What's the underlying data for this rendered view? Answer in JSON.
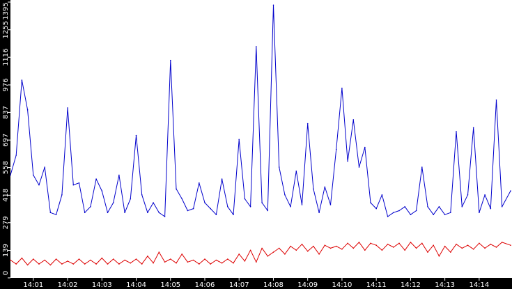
{
  "chart_data": {
    "type": "line",
    "title": "",
    "xlabel": "",
    "ylabel": "",
    "ylim": [
      0,
      1395
    ],
    "xlim": [
      "14:00:20",
      "14:14:55"
    ],
    "y_ticks": [
      0,
      139,
      279,
      418,
      558,
      697,
      837,
      976,
      1116,
      1255,
      1395
    ],
    "x_ticks": [
      "14:01",
      "14:02",
      "14:03",
      "14:04",
      "14:05",
      "14:06",
      "14:07",
      "14:08",
      "14:09",
      "14:10",
      "14:11",
      "14:12",
      "14:13",
      "14:14"
    ],
    "grid": false,
    "legend": "none",
    "colors": {
      "background": "#ffffff",
      "axis_band": "#000000",
      "tick_text": "#ffffff",
      "series_1": "#0000cc",
      "series_2": "#dd0000"
    },
    "series": [
      {
        "color": "#0000cc",
        "x": [
          "14:00:20",
          "14:00:30",
          "14:00:40",
          "14:00:50",
          "14:01:00",
          "14:01:10",
          "14:01:20",
          "14:01:30",
          "14:01:40",
          "14:01:50",
          "14:02:00",
          "14:02:10",
          "14:02:20",
          "14:02:30",
          "14:02:40",
          "14:02:50",
          "14:03:00",
          "14:03:10",
          "14:03:20",
          "14:03:30",
          "14:03:40",
          "14:03:50",
          "14:04:00",
          "14:04:10",
          "14:04:20",
          "14:04:30",
          "14:04:40",
          "14:04:50",
          "14:05:00",
          "14:05:10",
          "14:05:20",
          "14:05:30",
          "14:05:40",
          "14:05:50",
          "14:06:00",
          "14:06:10",
          "14:06:20",
          "14:06:30",
          "14:06:40",
          "14:06:50",
          "14:07:00",
          "14:07:10",
          "14:07:20",
          "14:07:30",
          "14:07:40",
          "14:07:50",
          "14:08:00",
          "14:08:10",
          "14:08:20",
          "14:08:30",
          "14:08:40",
          "14:08:50",
          "14:09:00",
          "14:09:10",
          "14:09:20",
          "14:09:30",
          "14:09:40",
          "14:09:50",
          "14:10:00",
          "14:10:10",
          "14:10:20",
          "14:10:30",
          "14:10:40",
          "14:10:50",
          "14:11:00",
          "14:11:10",
          "14:11:20",
          "14:11:30",
          "14:11:40",
          "14:11:50",
          "14:12:00",
          "14:12:10",
          "14:12:20",
          "14:12:30",
          "14:12:40",
          "14:12:50",
          "14:13:00",
          "14:13:10",
          "14:13:20",
          "14:13:30",
          "14:13:40",
          "14:13:50",
          "14:14:00",
          "14:14:10",
          "14:14:20",
          "14:14:30",
          "14:14:40",
          "14:14:55"
        ],
        "values": [
          520,
          620,
          1000,
          850,
          520,
          470,
          560,
          330,
          320,
          420,
          860,
          470,
          480,
          330,
          360,
          500,
          440,
          330,
          380,
          520,
          330,
          400,
          720,
          420,
          330,
          380,
          330,
          310,
          1100,
          450,
          400,
          340,
          350,
          480,
          380,
          350,
          320,
          500,
          360,
          320,
          700,
          400,
          360,
          1170,
          380,
          340,
          1380,
          560,
          420,
          360,
          540,
          370,
          780,
          450,
          330,
          460,
          370,
          650,
          960,
          590,
          800,
          560,
          660,
          380,
          350,
          420,
          310,
          330,
          340,
          360,
          320,
          340,
          560,
          360,
          320,
          360,
          320,
          330,
          740,
          360,
          420,
          760,
          330,
          420,
          350,
          900,
          360,
          440
        ]
      },
      {
        "color": "#dd0000",
        "x": [
          "14:00:20",
          "14:00:30",
          "14:00:40",
          "14:00:50",
          "14:01:00",
          "14:01:10",
          "14:01:20",
          "14:01:30",
          "14:01:40",
          "14:01:50",
          "14:02:00",
          "14:02:10",
          "14:02:20",
          "14:02:30",
          "14:02:40",
          "14:02:50",
          "14:03:00",
          "14:03:10",
          "14:03:20",
          "14:03:30",
          "14:03:40",
          "14:03:50",
          "14:04:00",
          "14:04:10",
          "14:04:20",
          "14:04:30",
          "14:04:40",
          "14:04:50",
          "14:05:00",
          "14:05:10",
          "14:05:20",
          "14:05:30",
          "14:05:40",
          "14:05:50",
          "14:06:00",
          "14:06:10",
          "14:06:20",
          "14:06:30",
          "14:06:40",
          "14:06:50",
          "14:07:00",
          "14:07:10",
          "14:07:20",
          "14:07:30",
          "14:07:40",
          "14:07:50",
          "14:08:00",
          "14:08:10",
          "14:08:20",
          "14:08:30",
          "14:08:40",
          "14:08:50",
          "14:09:00",
          "14:09:10",
          "14:09:20",
          "14:09:30",
          "14:09:40",
          "14:09:50",
          "14:10:00",
          "14:10:10",
          "14:10:20",
          "14:10:30",
          "14:10:40",
          "14:10:50",
          "14:11:00",
          "14:11:10",
          "14:11:20",
          "14:11:30",
          "14:11:40",
          "14:11:50",
          "14:12:00",
          "14:12:10",
          "14:12:20",
          "14:12:30",
          "14:12:40",
          "14:12:50",
          "14:13:00",
          "14:13:10",
          "14:13:20",
          "14:13:30",
          "14:13:40",
          "14:13:50",
          "14:14:00",
          "14:14:10",
          "14:14:20",
          "14:14:30",
          "14:14:40",
          "14:14:55"
        ],
        "values": [
          90,
          70,
          100,
          65,
          95,
          70,
          90,
          65,
          95,
          70,
          85,
          70,
          95,
          70,
          90,
          70,
          100,
          70,
          95,
          70,
          90,
          75,
          95,
          70,
          110,
          75,
          130,
          80,
          95,
          75,
          120,
          80,
          90,
          70,
          95,
          70,
          90,
          75,
          95,
          75,
          120,
          85,
          140,
          80,
          150,
          110,
          130,
          150,
          120,
          160,
          140,
          170,
          135,
          160,
          120,
          165,
          150,
          160,
          145,
          175,
          150,
          180,
          140,
          175,
          165,
          140,
          170,
          155,
          175,
          140,
          180,
          150,
          175,
          130,
          165,
          110,
          160,
          130,
          170,
          150,
          165,
          145,
          175,
          150,
          170,
          155,
          180,
          165
        ]
      }
    ]
  }
}
